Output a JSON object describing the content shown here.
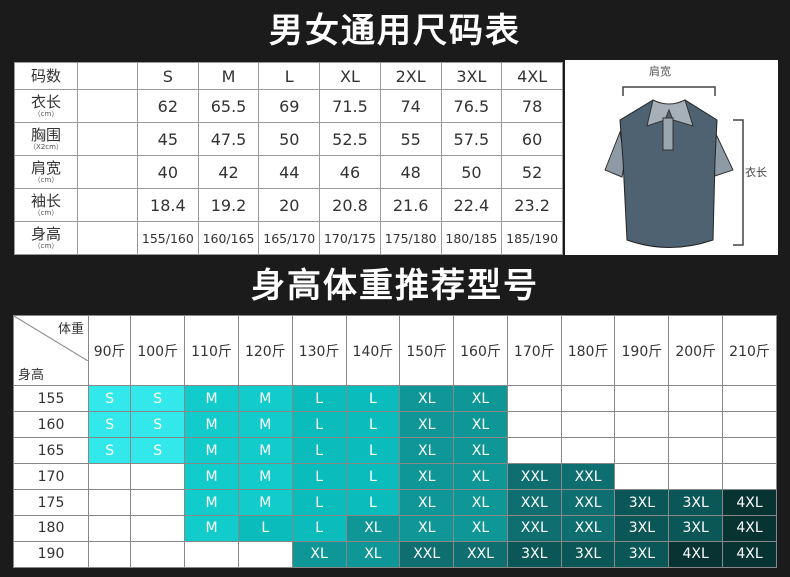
{
  "title_top": "男女通用尺码表",
  "title_bottom": "身高体重推荐型号",
  "size_table": {
    "header_label": "码数",
    "sizes": [
      "S",
      "M",
      "L",
      "XL",
      "2XL",
      "3XL",
      "4XL"
    ],
    "rows": [
      {
        "label": "衣长",
        "unit": "（cm）",
        "values": [
          "62",
          "65.5",
          "69",
          "71.5",
          "74",
          "76.5",
          "78"
        ]
      },
      {
        "label": "胸围",
        "unit": "（X2cm）",
        "values": [
          "45",
          "47.5",
          "50",
          "52.5",
          "55",
          "57.5",
          "60"
        ]
      },
      {
        "label": "肩宽",
        "unit": "（cm）",
        "values": [
          "40",
          "42",
          "44",
          "46",
          "48",
          "50",
          "52"
        ]
      },
      {
        "label": "袖长",
        "unit": "（cm）",
        "values": [
          "18.4",
          "19.2",
          "20",
          "20.8",
          "21.6",
          "22.4",
          "23.2"
        ]
      },
      {
        "label": "身高",
        "unit": "（cm）",
        "values": [
          "155/160",
          "160/165",
          "165/170",
          "170/175",
          "175/180",
          "180/185",
          "185/190"
        ]
      }
    ]
  },
  "shirt": {
    "shoulder_label": "肩宽",
    "length_label": "衣长",
    "body_color": "#4f6272",
    "sleeve_color": "#8e9ba6"
  },
  "rec_table": {
    "corner_weight": "体重",
    "corner_height": "身高",
    "weights": [
      "90斤",
      "100斤",
      "110斤",
      "120斤",
      "130斤",
      "140斤",
      "150斤",
      "160斤",
      "170斤",
      "180斤",
      "190斤",
      "200斤",
      "210斤"
    ],
    "rows": [
      {
        "height": "155",
        "sizes": [
          "S",
          "S",
          "M",
          "M",
          "L",
          "L",
          "XL",
          "XL",
          "",
          "",
          "",
          "",
          ""
        ]
      },
      {
        "height": "160",
        "sizes": [
          "S",
          "S",
          "M",
          "M",
          "L",
          "L",
          "XL",
          "XL",
          "",
          "",
          "",
          "",
          ""
        ]
      },
      {
        "height": "165",
        "sizes": [
          "S",
          "S",
          "M",
          "M",
          "L",
          "L",
          "XL",
          "XL",
          "",
          "",
          "",
          "",
          ""
        ]
      },
      {
        "height": "170",
        "sizes": [
          "",
          "",
          "M",
          "M",
          "L",
          "L",
          "XL",
          "XL",
          "XXL",
          "XXL",
          "",
          "",
          ""
        ]
      },
      {
        "height": "175",
        "sizes": [
          "",
          "",
          "M",
          "M",
          "L",
          "L",
          "XL",
          "XL",
          "XXL",
          "XXL",
          "3XL",
          "3XL",
          "4XL"
        ]
      },
      {
        "height": "180",
        "sizes": [
          "",
          "",
          "M",
          "L",
          "L",
          "XL",
          "XL",
          "XL",
          "XXL",
          "XXL",
          "3XL",
          "3XL",
          "4XL"
        ]
      },
      {
        "height": "190",
        "sizes": [
          "",
          "",
          "",
          "",
          "XL",
          "XL",
          "XXL",
          "XXL",
          "3XL",
          "3XL",
          "3XL",
          "4XL",
          "4XL"
        ]
      }
    ],
    "colors": {
      "S": "#33e8ea",
      "M": "#12cccc",
      "L": "#0bbcbc",
      "XL": "#0f9797",
      "XXL": "#0f6e70",
      "3XL": "#0b5656",
      "4XL": "#083333"
    }
  }
}
